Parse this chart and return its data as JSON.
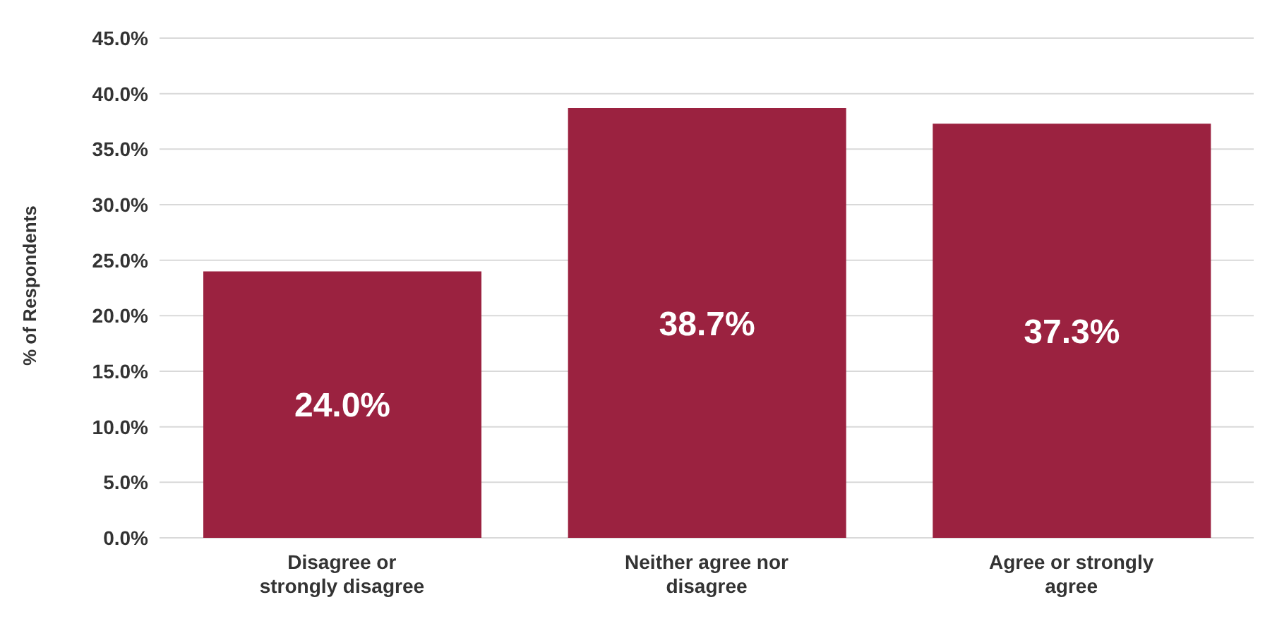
{
  "chart_data": {
    "type": "bar",
    "ylabel": "% of Respondents",
    "categories": [
      "Disagree or strongly disagree",
      "Neither agree nor disagree",
      "Agree or strongly agree"
    ],
    "values": [
      24.0,
      38.7,
      37.3
    ],
    "value_labels": [
      "24.0%",
      "38.7%",
      "37.3%"
    ],
    "color": "#9b2240",
    "ylim": [
      0,
      45
    ],
    "yticks": [
      {
        "value": 0,
        "label": "0.0%"
      },
      {
        "value": 5,
        "label": "5.0%"
      },
      {
        "value": 10,
        "label": "10.0%"
      },
      {
        "value": 15,
        "label": "15.0%"
      },
      {
        "value": 20,
        "label": "20.0%"
      },
      {
        "value": 25,
        "label": "25.0%"
      },
      {
        "value": 30,
        "label": "30.0%"
      },
      {
        "value": 35,
        "label": "35.0%"
      },
      {
        "value": 40,
        "label": "40.0%"
      },
      {
        "value": 45,
        "label": "45.0%"
      }
    ],
    "grid": "y",
    "legend": false
  }
}
